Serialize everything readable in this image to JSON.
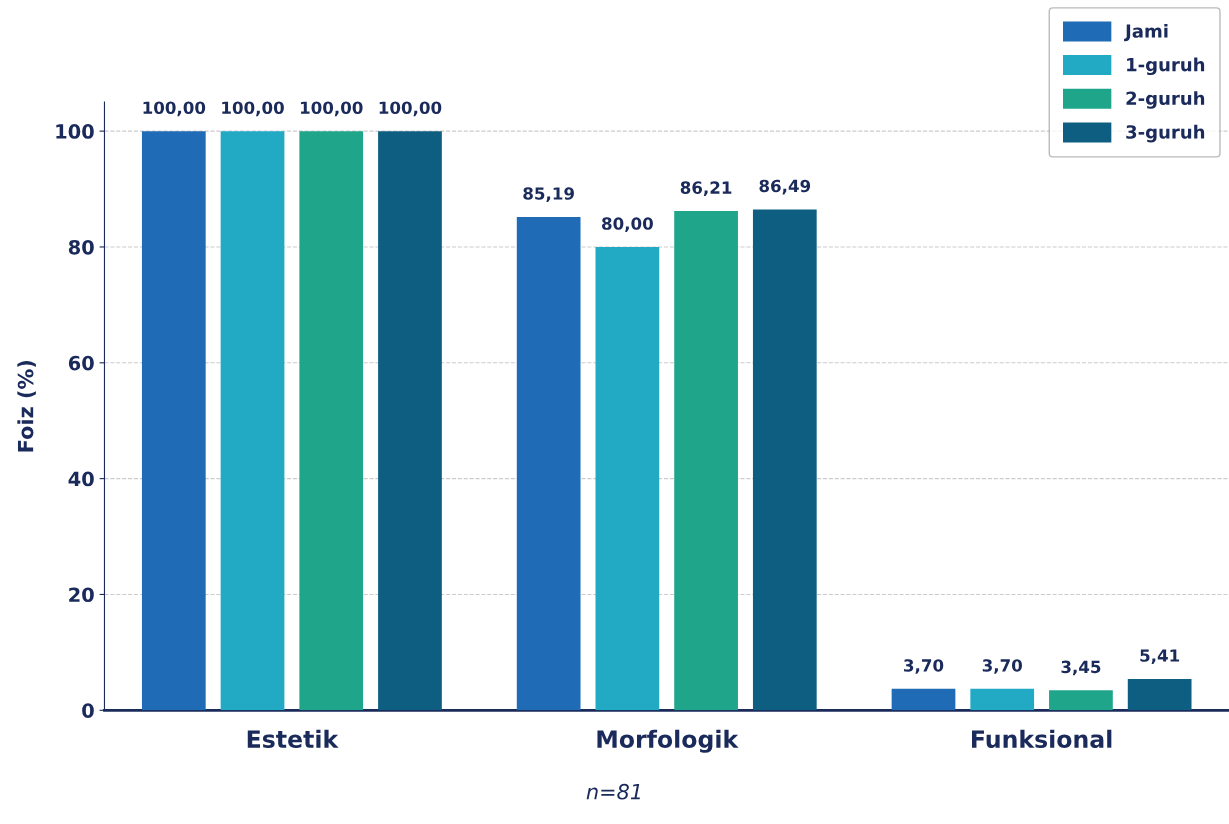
{
  "chart_data": {
    "type": "bar",
    "ylabel": "Foiz (%)",
    "categories": [
      "Estetik",
      "Morfologik",
      "Funksional"
    ],
    "series": [
      {
        "name": "Jami",
        "color": "#1f6bb5",
        "values": [
          100.0,
          85.19,
          3.7
        ],
        "value_labels": [
          "100,00",
          "85,19",
          "3,70"
        ]
      },
      {
        "name": "1-guruh",
        "color": "#22a9c4",
        "values": [
          100.0,
          80.0,
          3.7
        ],
        "value_labels": [
          "100,00",
          "80,00",
          "3,70"
        ]
      },
      {
        "name": "2-guruh",
        "color": "#1fa58a",
        "values": [
          100.0,
          86.21,
          3.45
        ],
        "value_labels": [
          "100,00",
          "86,21",
          "3,45"
        ]
      },
      {
        "name": "3-guruh",
        "color": "#0d5e80",
        "values": [
          100.0,
          86.49,
          5.41
        ],
        "value_labels": [
          "100,00",
          "86,49",
          "5,41"
        ]
      }
    ],
    "ylim": [
      0,
      105
    ],
    "yticks": [
      0,
      20,
      40,
      60,
      80,
      100
    ],
    "grid": "y",
    "legend": "top right",
    "annotations": [
      "n=81"
    ]
  }
}
